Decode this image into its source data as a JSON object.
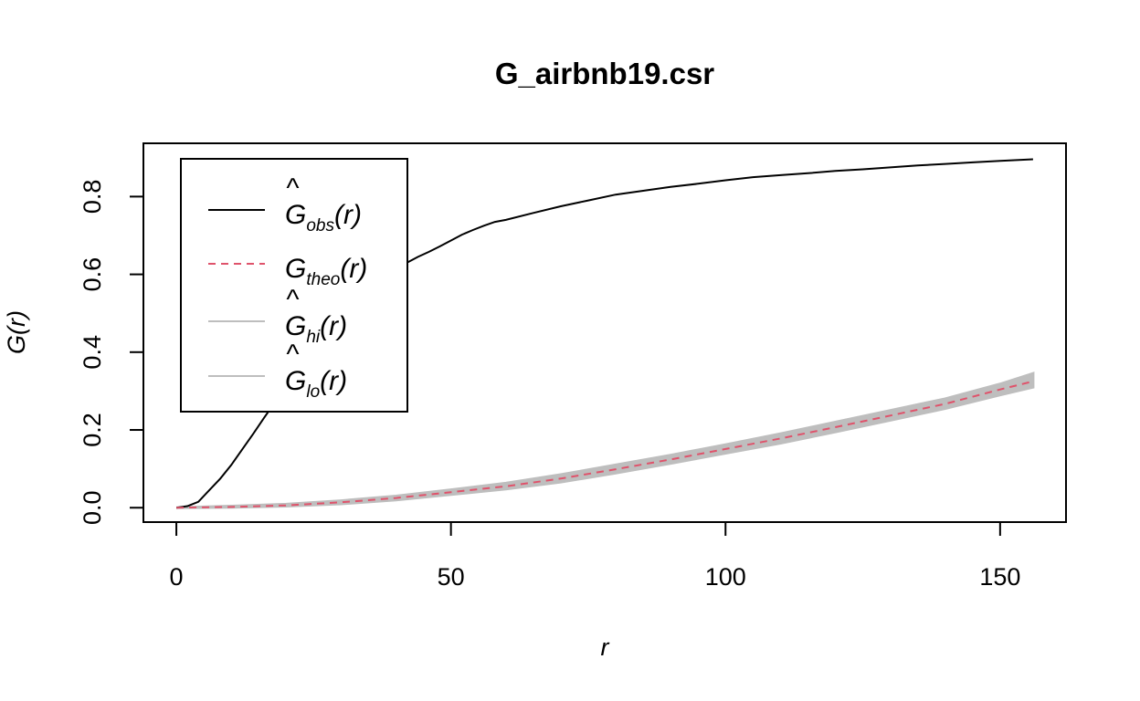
{
  "chart_data": {
    "type": "line",
    "title": "G_airbnb19.csr",
    "xlabel": "r",
    "ylabel": "G(r)",
    "xlim": [
      -6,
      162
    ],
    "ylim": [
      -0.037,
      0.937
    ],
    "x_ticks": [
      0,
      50,
      100,
      150
    ],
    "x_tick_labels": [
      "0",
      "50",
      "100",
      "150"
    ],
    "y_ticks": [
      0,
      0.2,
      0.4,
      0.6,
      0.8
    ],
    "y_tick_labels": [
      "0.0",
      "0.2",
      "0.4",
      "0.6",
      "0.8"
    ],
    "grid": false,
    "legend_position": "top-left",
    "envelope": {
      "color": "#bebebe",
      "x": [
        0,
        10,
        20,
        30,
        40,
        50,
        60,
        70,
        80,
        90,
        100,
        110,
        120,
        130,
        140,
        150,
        156
      ],
      "hi": [
        0,
        0.004,
        0.009,
        0.018,
        0.03,
        0.046,
        0.063,
        0.085,
        0.11,
        0.135,
        0.162,
        0.19,
        0.22,
        0.25,
        0.28,
        0.318,
        0.345
      ],
      "lo": [
        0,
        0.001,
        0.004,
        0.01,
        0.02,
        0.034,
        0.048,
        0.066,
        0.089,
        0.114,
        0.14,
        0.166,
        0.195,
        0.225,
        0.255,
        0.29,
        0.31
      ]
    },
    "series": [
      {
        "key": "obs",
        "color": "#000000",
        "dash": "solid",
        "x": [
          0,
          2,
          4,
          6,
          8,
          10,
          12,
          14,
          16,
          18,
          20,
          22,
          24,
          26,
          28,
          30,
          32,
          34,
          36,
          38,
          40,
          42,
          44,
          46,
          48,
          50,
          52,
          54,
          56,
          58,
          60,
          65,
          70,
          75,
          80,
          85,
          90,
          95,
          100,
          105,
          110,
          115,
          120,
          125,
          130,
          135,
          140,
          145,
          150,
          156
        ],
        "y": [
          0,
          0.004,
          0.015,
          0.045,
          0.075,
          0.11,
          0.15,
          0.19,
          0.232,
          0.272,
          0.31,
          0.352,
          0.39,
          0.425,
          0.462,
          0.498,
          0.535,
          0.557,
          0.572,
          0.588,
          0.612,
          0.63,
          0.645,
          0.658,
          0.672,
          0.687,
          0.702,
          0.714,
          0.725,
          0.735,
          0.74,
          0.758,
          0.775,
          0.79,
          0.805,
          0.815,
          0.825,
          0.833,
          0.842,
          0.85,
          0.855,
          0.86,
          0.866,
          0.87,
          0.875,
          0.88,
          0.884,
          0.888,
          0.892,
          0.896
        ]
      },
      {
        "key": "theo",
        "color": "#df536b",
        "dash": "dashed",
        "x": [
          0,
          10,
          20,
          30,
          40,
          50,
          60,
          70,
          80,
          90,
          100,
          110,
          120,
          130,
          140,
          150,
          156
        ],
        "y": [
          0,
          0.002,
          0.006,
          0.014,
          0.025,
          0.04,
          0.055,
          0.075,
          0.099,
          0.124,
          0.151,
          0.178,
          0.207,
          0.237,
          0.267,
          0.304,
          0.325
        ]
      }
    ],
    "legend": [
      {
        "key": "obs",
        "sym": "G",
        "hat": "^",
        "sub": "obs",
        "arg": "(r)",
        "color": "#000000",
        "dash": "solid"
      },
      {
        "key": "theo",
        "sym": "G",
        "hat": "",
        "sub": "theo",
        "arg": "(r)",
        "color": "#df536b",
        "dash": "dashed"
      },
      {
        "key": "hi",
        "sym": "G",
        "hat": "^",
        "sub": "hi",
        "arg": "(r)",
        "color": "#bebebe",
        "dash": "solid"
      },
      {
        "key": "lo",
        "sym": "G",
        "hat": "^",
        "sub": "lo",
        "arg": "(r)",
        "color": "#bebebe",
        "dash": "solid"
      }
    ]
  }
}
